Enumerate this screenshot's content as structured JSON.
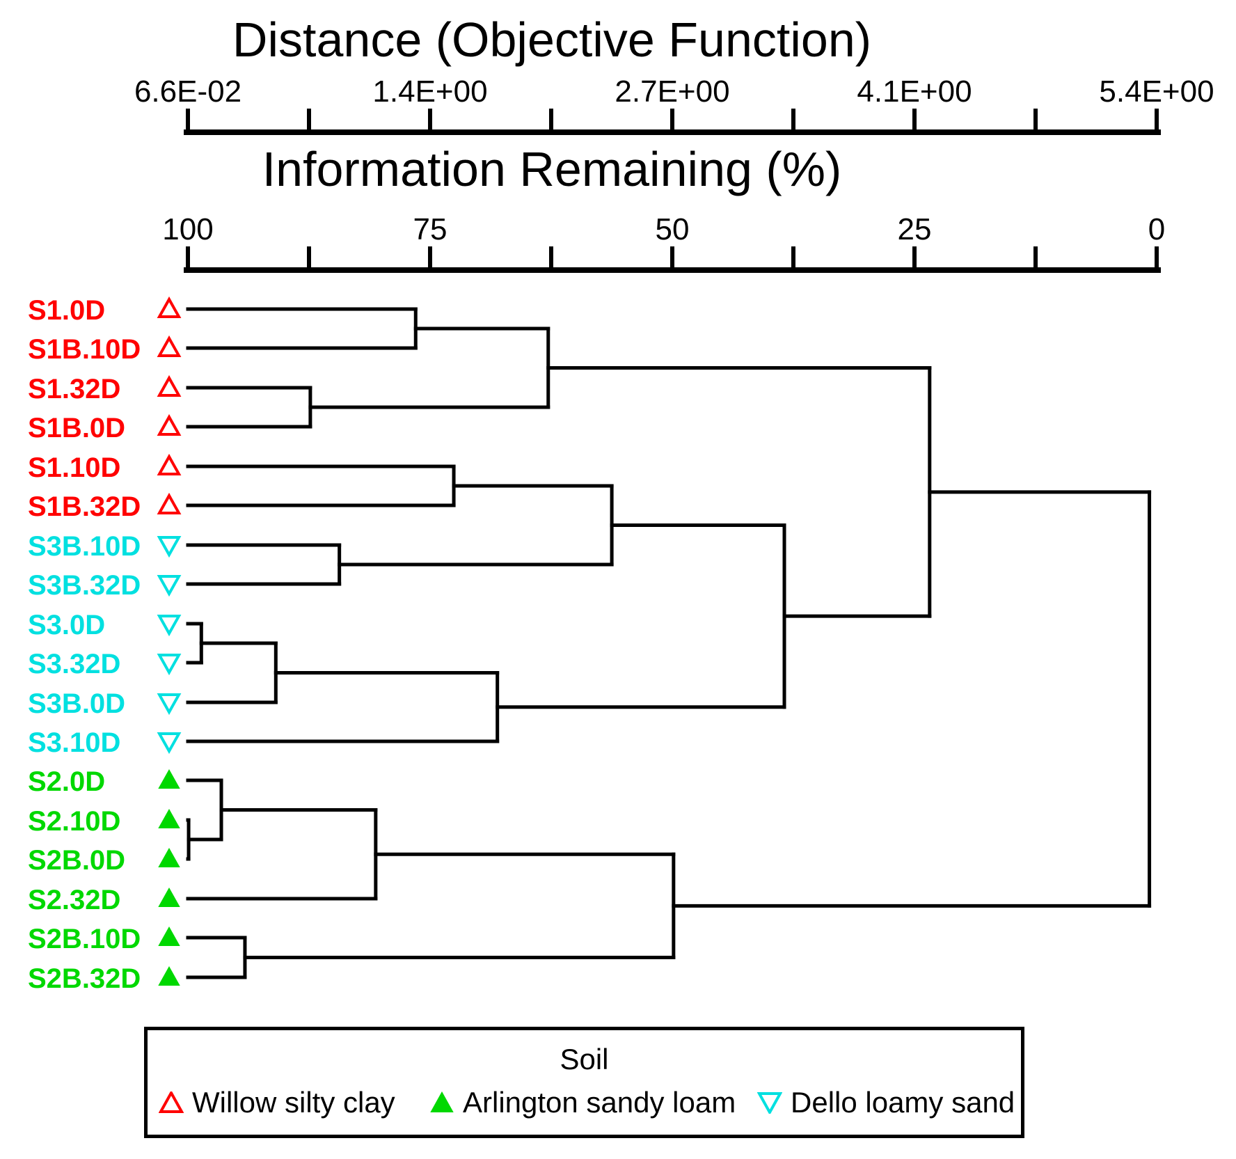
{
  "chart_data": {
    "type": "dendrogram",
    "orientation": "horizontal-leaves-left",
    "grid": false,
    "legend_position": "bottom",
    "distance_axis": {
      "title": "Distance (Objective Function)",
      "tick_labels": [
        "6.6E-02",
        "1.4E+00",
        "2.7E+00",
        "4.1E+00",
        "5.4E+00"
      ],
      "tick_values": [
        0.066,
        1.4,
        2.7,
        4.1,
        5.4
      ],
      "min": 0.066,
      "max": 5.4
    },
    "information_axis": {
      "title": "Information Remaining (%)",
      "tick_labels": [
        "100",
        "75",
        "50",
        "25",
        "0"
      ],
      "tick_values": [
        100,
        75,
        50,
        25,
        0
      ]
    },
    "groups": {
      "willow": {
        "label": "Willow silty clay",
        "color": "#ff0000",
        "marker": "triangle-up-open"
      },
      "arlington": {
        "label": "Arlington sandy loam",
        "color": "#00d800",
        "marker": "triangle-up-filled"
      },
      "dello": {
        "label": "Dello loamy sand",
        "color": "#00e0e0",
        "marker": "triangle-down-open"
      }
    },
    "leaves": [
      {
        "label": "S1.0D",
        "group": "willow"
      },
      {
        "label": "S1B.10D",
        "group": "willow"
      },
      {
        "label": "S1.32D",
        "group": "willow"
      },
      {
        "label": "S1B.0D",
        "group": "willow"
      },
      {
        "label": "S1.10D",
        "group": "willow"
      },
      {
        "label": "S1B.32D",
        "group": "willow"
      },
      {
        "label": "S3B.10D",
        "group": "dello"
      },
      {
        "label": "S3B.32D",
        "group": "dello"
      },
      {
        "label": "S3.0D",
        "group": "dello"
      },
      {
        "label": "S3.32D",
        "group": "dello"
      },
      {
        "label": "S3B.0D",
        "group": "dello"
      },
      {
        "label": "S3.10D",
        "group": "dello"
      },
      {
        "label": "S2.0D",
        "group": "arlington"
      },
      {
        "label": "S2.10D",
        "group": "arlington"
      },
      {
        "label": "S2B.0D",
        "group": "arlington"
      },
      {
        "label": "S2.32D",
        "group": "arlington"
      },
      {
        "label": "S2B.10D",
        "group": "arlington"
      },
      {
        "label": "S2B.32D",
        "group": "arlington"
      }
    ],
    "joins": [
      {
        "id": "J1",
        "a": "L0",
        "b": "L1",
        "distance": 1.32
      },
      {
        "id": "J2",
        "a": "L2",
        "b": "L3",
        "distance": 0.74
      },
      {
        "id": "J3",
        "a": "J1",
        "b": "J2",
        "distance": 2.05
      },
      {
        "id": "J4",
        "a": "L4",
        "b": "L5",
        "distance": 1.53
      },
      {
        "id": "J5",
        "a": "L6",
        "b": "L7",
        "distance": 0.9
      },
      {
        "id": "J6",
        "a": "J4",
        "b": "J5",
        "distance": 2.4
      },
      {
        "id": "J7",
        "a": "L8",
        "b": "L9",
        "distance": 0.14
      },
      {
        "id": "J8",
        "a": "J7",
        "b": "L10",
        "distance": 0.55
      },
      {
        "id": "J9",
        "a": "J8",
        "b": "L11",
        "distance": 1.77
      },
      {
        "id": "J10",
        "a": "J6",
        "b": "J9",
        "distance": 3.35
      },
      {
        "id": "J11",
        "a": "J3",
        "b": "J10",
        "distance": 4.15
      },
      {
        "id": "J12",
        "a": "L13",
        "b": "L14",
        "distance": 0.07
      },
      {
        "id": "J13",
        "a": "L12",
        "b": "J12",
        "distance": 0.25
      },
      {
        "id": "J14",
        "a": "J13",
        "b": "L15",
        "distance": 1.1
      },
      {
        "id": "J15",
        "a": "L16",
        "b": "L17",
        "distance": 0.38
      },
      {
        "id": "J16",
        "a": "J14",
        "b": "J15",
        "distance": 2.74
      },
      {
        "id": "J17",
        "a": "J11",
        "b": "J16",
        "distance": 5.36
      }
    ],
    "legend": {
      "title": "Soil",
      "entry_order": [
        "willow",
        "arlington",
        "dello"
      ]
    }
  },
  "colors": {
    "line": "#000000",
    "text": "#000000",
    "background": "#ffffff"
  }
}
